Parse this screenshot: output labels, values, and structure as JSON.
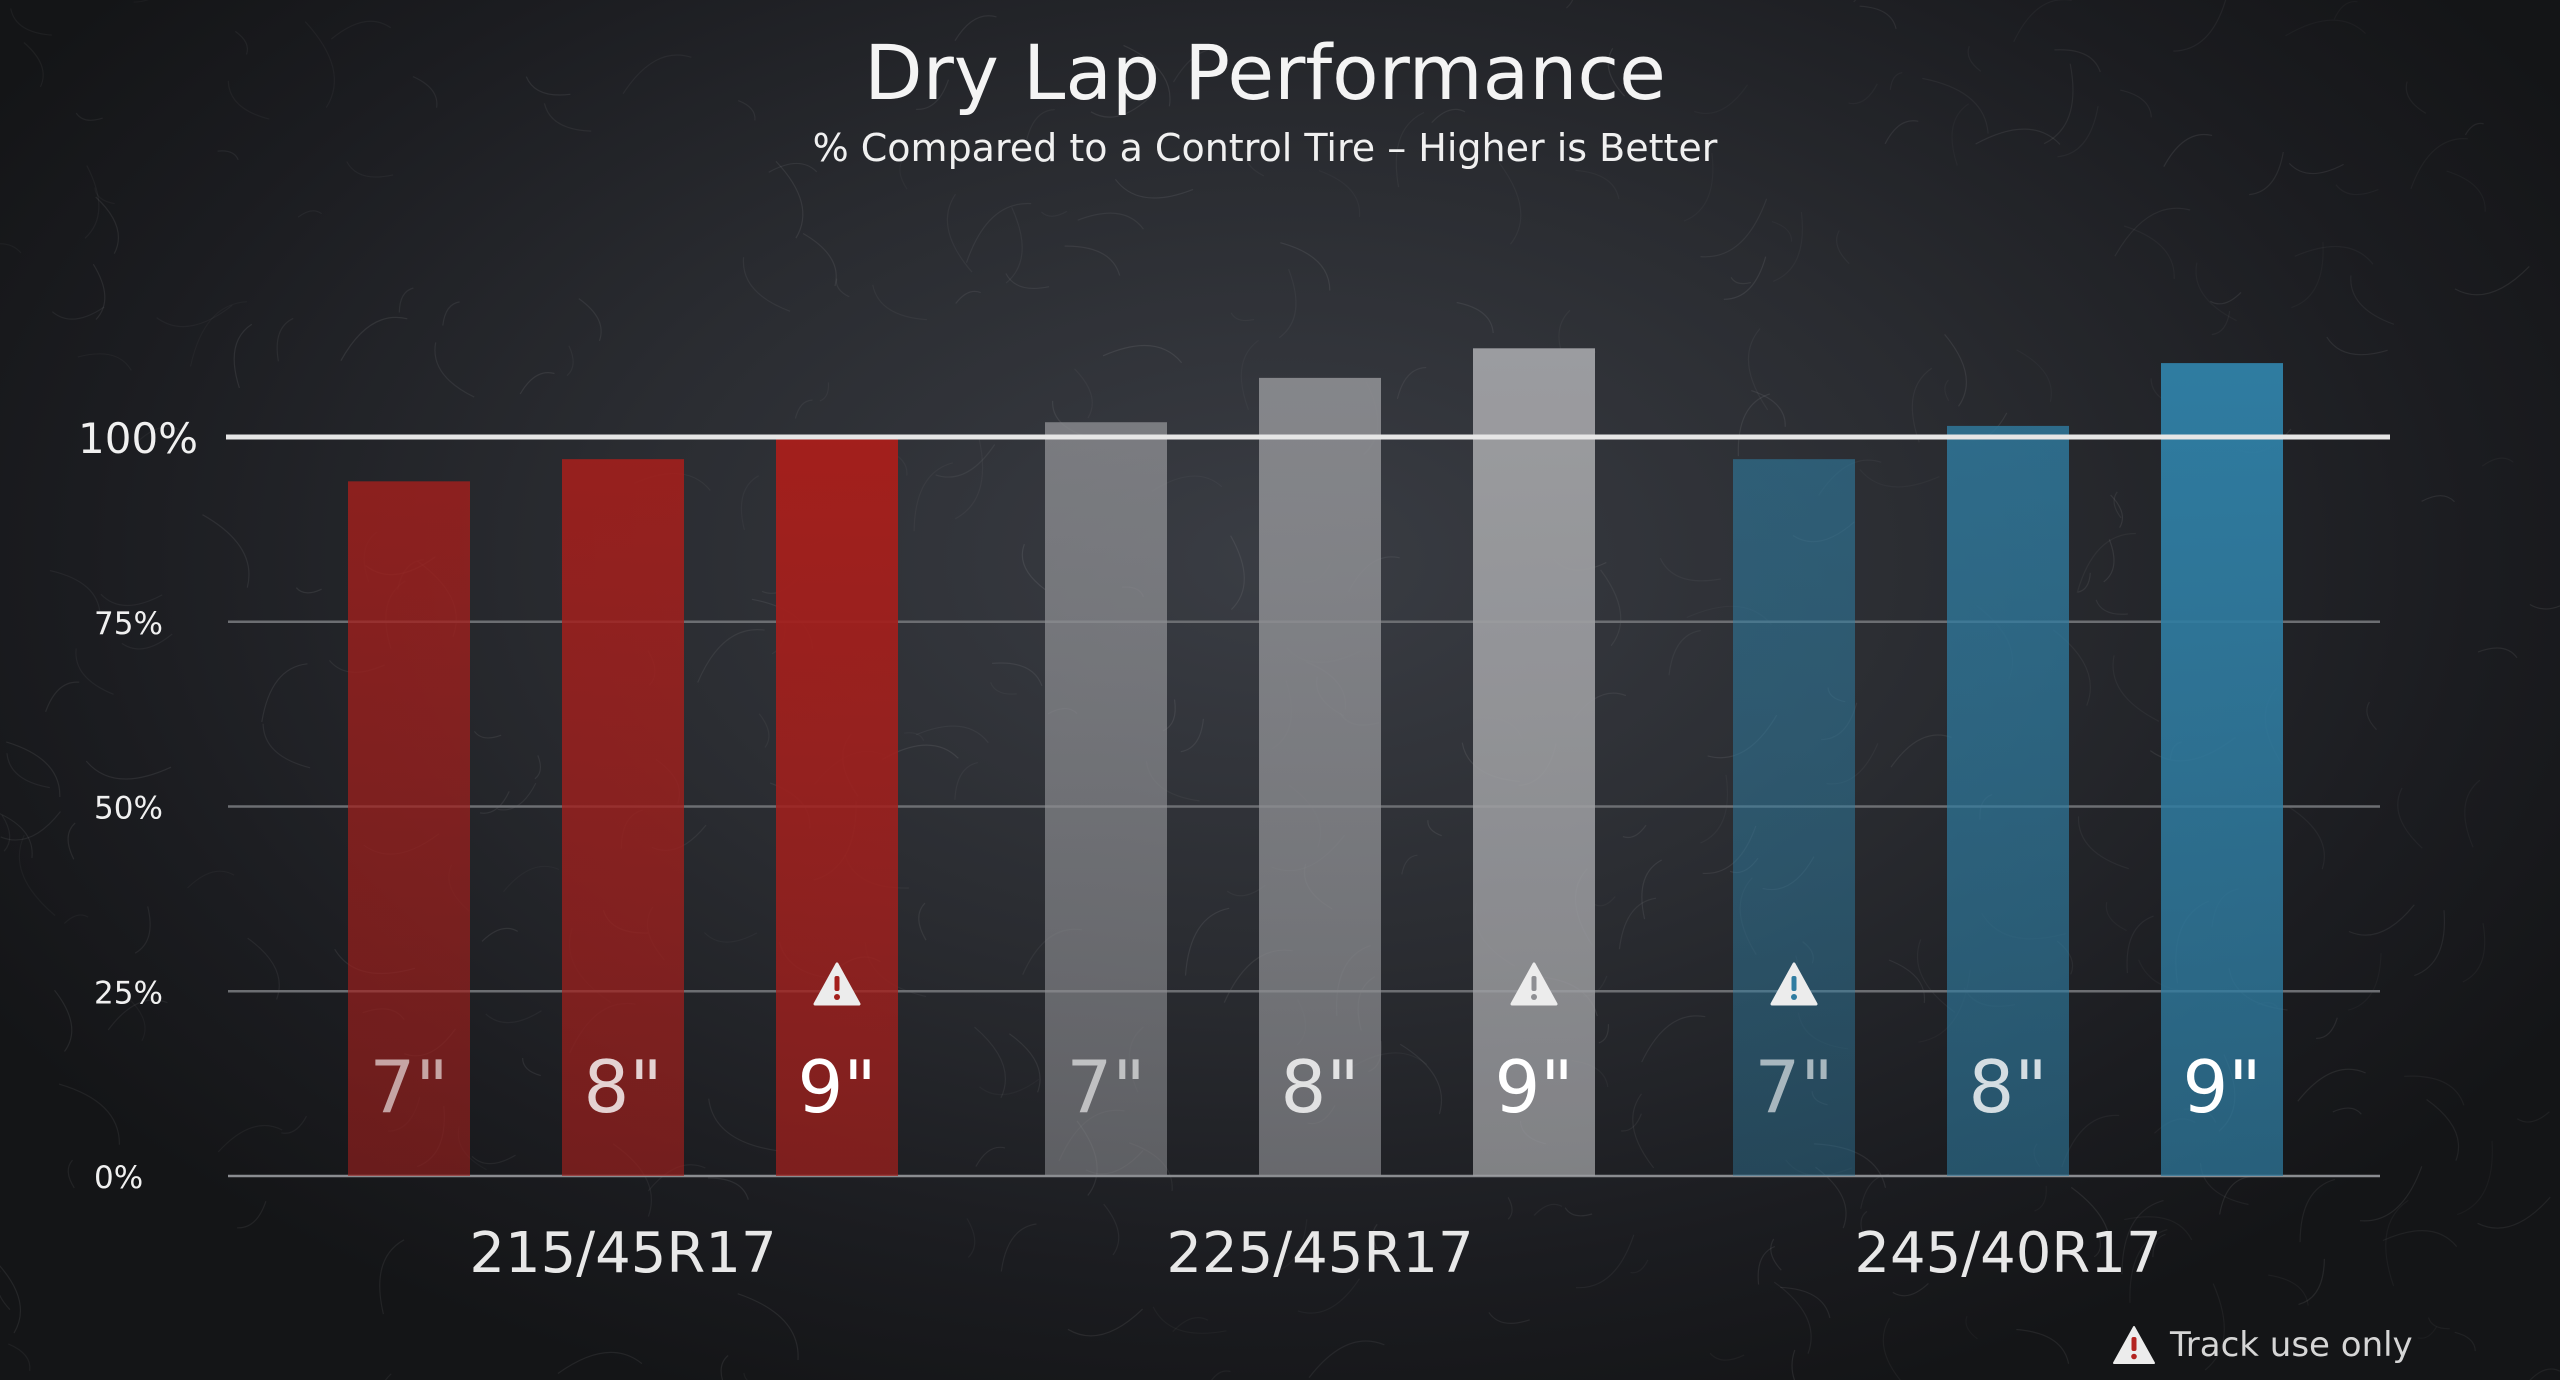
{
  "chart_data": {
    "type": "bar",
    "title": "Dry Lap Performance",
    "subtitle": "% Compared to a Control Tire – Higher is Better",
    "xlabel": "",
    "ylabel": "",
    "ylim": [
      0,
      125
    ],
    "yticks": [
      {
        "value": 0,
        "label": "0%"
      },
      {
        "value": 25,
        "label": "25%"
      },
      {
        "value": 50,
        "label": "50%"
      },
      {
        "value": 75,
        "label": "75%"
      },
      {
        "value": 100,
        "label": "100%"
      }
    ],
    "reference_line": {
      "value": 100,
      "color": "#e6e6e6"
    },
    "grid": true,
    "legend": "none",
    "groups": [
      {
        "name": "215/45R17",
        "color": "#a31f1c",
        "bars": [
          {
            "label": "7\"",
            "value": 94,
            "track_use_only": false
          },
          {
            "label": "8\"",
            "value": 97,
            "track_use_only": false
          },
          {
            "label": "9\"",
            "value": 100,
            "track_use_only": true
          }
        ]
      },
      {
        "name": "225/45R17",
        "color": "#8e8f93",
        "bars": [
          {
            "label": "7\"",
            "value": 102,
            "track_use_only": false
          },
          {
            "label": "8\"",
            "value": 108,
            "track_use_only": false
          },
          {
            "label": "9\"",
            "value": 112,
            "track_use_only": true
          }
        ]
      },
      {
        "name": "245/40R17",
        "color": "#2f7ca1",
        "bars": [
          {
            "label": "7\"",
            "value": 97,
            "track_use_only": true
          },
          {
            "label": "8\"",
            "value": 101.5,
            "track_use_only": false
          },
          {
            "label": "9\"",
            "value": 110,
            "track_use_only": false
          }
        ]
      }
    ]
  },
  "footnote": {
    "icon": "warning-triangle-icon",
    "text": "Track use only"
  }
}
